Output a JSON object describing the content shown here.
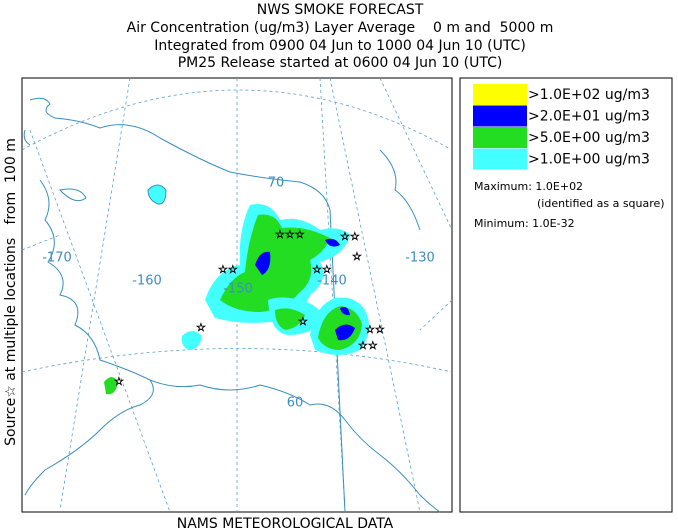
{
  "header": {
    "lines": [
      "NWS SMOKE FORECAST",
      "Air Concentration (ug/m3) Layer Average    0 m and  5000 m",
      "Integrated from 0900 04 Jun to 1000 04 Jun 10 (UTC)",
      "PM25 Release started at 0600 04 Jun 10 (UTC)"
    ]
  },
  "side_label": "Source☆ at multiple locations   from  100 m",
  "footer": "NAMS METEOROLOGICAL DATA",
  "map": {
    "graticule_labels": [
      "-170",
      "-160",
      "-150",
      "-140",
      "-130",
      "70",
      "60"
    ]
  },
  "legend": {
    "items": [
      {
        "label": ">1.0E+02 ug/m3",
        "color": "#ffff00"
      },
      {
        "label": ">2.0E+01 ug/m3",
        "color": "#0000ff"
      },
      {
        "label": ">5.0E+00 ug/m3",
        "color": "#22dd22"
      },
      {
        "label": ">1.0E+00 ug/m3",
        "color": "#44ffff"
      }
    ],
    "maximum": "Maximum: 1.0E+02",
    "maximum_note": "(identified as a square)",
    "minimum": "Minimum: 1.0E-32"
  }
}
